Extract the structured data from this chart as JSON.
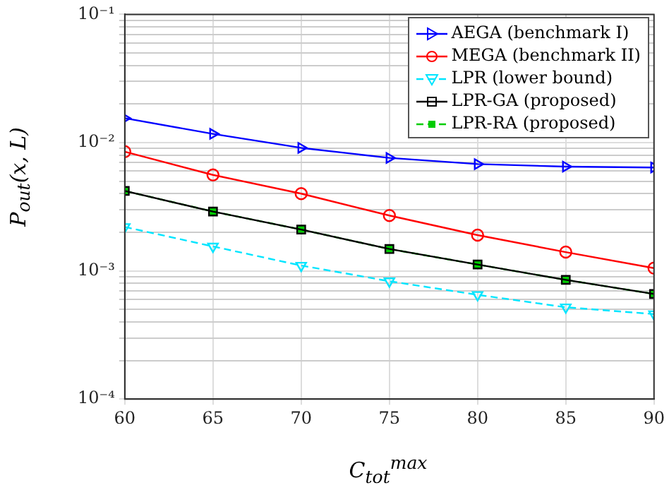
{
  "chart_data": {
    "type": "line",
    "xlabel": "C$_{tot}$$^{max}$",
    "ylabel": "P$_{out}$(x, L)",
    "x": [
      60,
      65,
      70,
      75,
      80,
      85,
      90
    ],
    "series": [
      {
        "name": "AEGA (benchmark I)",
        "color": "#0000ff",
        "marker": "triangle-right",
        "line_style": "solid",
        "values": [
          0.0155,
          0.0117,
          0.0091,
          0.0076,
          0.0068,
          0.0065,
          0.0064
        ]
      },
      {
        "name": "MEGA (benchmark II)",
        "color": "#ff0000",
        "marker": "circle",
        "line_style": "solid",
        "values": [
          0.0085,
          0.0056,
          0.004,
          0.0027,
          0.0019,
          0.0014,
          0.00105
        ]
      },
      {
        "name": "LPR (lower bound)",
        "color": "#00e5ff",
        "marker": "triangle-down",
        "line_style": "dashed",
        "values": [
          0.0022,
          0.00155,
          0.0011,
          0.00083,
          0.00065,
          0.00052,
          0.00046
        ]
      },
      {
        "name": "LPR-GA (proposed)",
        "color": "#000000",
        "marker": "square",
        "line_style": "solid",
        "values": [
          0.0042,
          0.0029,
          0.0021,
          0.00148,
          0.00112,
          0.00085,
          0.00066
        ]
      },
      {
        "name": "LPR-RA (proposed)",
        "color": "#00cc00",
        "marker": "square-filled",
        "line_style": "dashed",
        "values": [
          0.0042,
          0.0029,
          0.0021,
          0.00148,
          0.00112,
          0.00085,
          0.00066
        ]
      }
    ],
    "log": "y",
    "grid": true,
    "legend": "top right",
    "xlim": [
      60,
      90
    ],
    "xticks": [
      60,
      65,
      70,
      75,
      80,
      85,
      90
    ],
    "ylim": [
      0.0001,
      0.1
    ],
    "yticks": [
      {
        "value": 0.0001,
        "label": "10⁻⁴"
      },
      {
        "value": 0.0002,
        "label": null
      },
      {
        "value": 0.0003,
        "label": null
      },
      {
        "value": 0.0004,
        "label": null
      },
      {
        "value": 0.0005,
        "label": null
      },
      {
        "value": 0.0006,
        "label": null
      },
      {
        "value": 0.0007,
        "label": null
      },
      {
        "value": 0.0008,
        "label": null
      },
      {
        "value": 0.0009,
        "label": null
      },
      {
        "value": 0.001,
        "label": "10⁻³"
      },
      {
        "value": 0.002,
        "label": null
      },
      {
        "value": 0.003,
        "label": null
      },
      {
        "value": 0.004,
        "label": null
      },
      {
        "value": 0.005,
        "label": null
      },
      {
        "value": 0.006,
        "label": null
      },
      {
        "value": 0.007,
        "label": null
      },
      {
        "value": 0.008,
        "label": null
      },
      {
        "value": 0.009,
        "label": null
      },
      {
        "value": 0.01,
        "label": "10⁻²"
      },
      {
        "value": 0.02,
        "label": null
      },
      {
        "value": 0.03,
        "label": null
      },
      {
        "value": 0.04,
        "label": null
      },
      {
        "value": 0.05,
        "label": null
      },
      {
        "value": 0.06,
        "label": null
      },
      {
        "value": 0.07,
        "label": null
      },
      {
        "value": 0.08,
        "label": null
      },
      {
        "value": 0.09,
        "label": null
      },
      {
        "value": 0.1,
        "label": "10⁻¹"
      }
    ]
  }
}
